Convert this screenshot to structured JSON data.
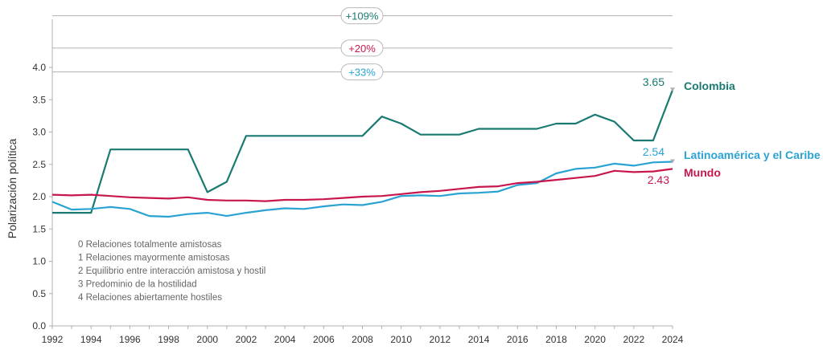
{
  "chart_data": {
    "type": "line",
    "title": "",
    "ylabel": "Polarización política",
    "xlabel": "",
    "ylim": [
      0,
      4
    ],
    "xlim": [
      1992,
      2024
    ],
    "yticks": [
      0.0,
      0.5,
      1.0,
      1.5,
      2.0,
      2.5,
      3.0,
      3.5,
      4.0
    ],
    "ytick_labels": [
      "0.0",
      "0.5",
      "1.0",
      "1.5",
      "2.0",
      "2.5",
      "3.0",
      "3.5",
      "4.0"
    ],
    "xtick_labels": [
      "1992",
      "1994",
      "1996",
      "1998",
      "2000",
      "2002",
      "2004",
      "2006",
      "2008",
      "2010",
      "2012",
      "2014",
      "2016",
      "2018",
      "2020",
      "2022",
      "2024"
    ],
    "grid": false,
    "x": [
      1992,
      1993,
      1994,
      1995,
      1996,
      1997,
      1998,
      1999,
      2000,
      2001,
      2002,
      2003,
      2004,
      2005,
      2006,
      2007,
      2008,
      2009,
      2010,
      2011,
      2012,
      2013,
      2014,
      2015,
      2016,
      2017,
      2018,
      2019,
      2020,
      2021,
      2022,
      2023,
      2024
    ],
    "series": [
      {
        "name": "Colombia",
        "color": "#1a7a72",
        "values": [
          1.75,
          1.75,
          1.75,
          2.73,
          2.73,
          2.73,
          2.73,
          2.73,
          2.07,
          2.23,
          2.94,
          2.94,
          2.94,
          2.94,
          2.94,
          2.94,
          2.94,
          3.24,
          3.13,
          2.96,
          2.96,
          2.96,
          3.05,
          3.05,
          3.05,
          3.05,
          3.13,
          3.13,
          3.27,
          3.16,
          2.87,
          2.87,
          3.65
        ],
        "end_label": "3.65"
      },
      {
        "name": "Latinoamérica y el Caribe",
        "color": "#2aa3d3",
        "values": [
          1.92,
          1.8,
          1.81,
          1.84,
          1.81,
          1.7,
          1.69,
          1.73,
          1.75,
          1.7,
          1.75,
          1.79,
          1.82,
          1.81,
          1.85,
          1.88,
          1.87,
          1.92,
          2.01,
          2.02,
          2.01,
          2.05,
          2.06,
          2.08,
          2.18,
          2.21,
          2.36,
          2.43,
          2.45,
          2.51,
          2.48,
          2.53,
          2.54
        ],
        "end_label": "2.54"
      },
      {
        "name": "Mundo",
        "color": "#c8174d",
        "values": [
          2.03,
          2.02,
          2.03,
          2.01,
          1.99,
          1.98,
          1.97,
          1.99,
          1.95,
          1.94,
          1.94,
          1.93,
          1.95,
          1.95,
          1.96,
          1.98,
          2.0,
          2.01,
          2.04,
          2.07,
          2.09,
          2.12,
          2.15,
          2.16,
          2.21,
          2.23,
          2.26,
          2.29,
          2.32,
          2.4,
          2.38,
          2.39,
          2.43
        ],
        "end_label": "2.43"
      }
    ],
    "growth_badges": [
      {
        "label": "+109%",
        "color": "#1a7a72",
        "y": 4.8
      },
      {
        "label": "+20%",
        "color": "#c8174d",
        "y": 4.3
      },
      {
        "label": "+33%",
        "color": "#2aa3d3",
        "y": 3.93
      }
    ],
    "scale_legend": [
      "0  Relaciones totalmente amistosas",
      "1  Relaciones mayormente amistosas",
      "2  Equilibrio entre interacción amistosa y hostil",
      "3  Predominio de la hostilidad",
      "4  Relaciones abiertamente hostiles"
    ],
    "legend_placement": "right, at line ends"
  }
}
